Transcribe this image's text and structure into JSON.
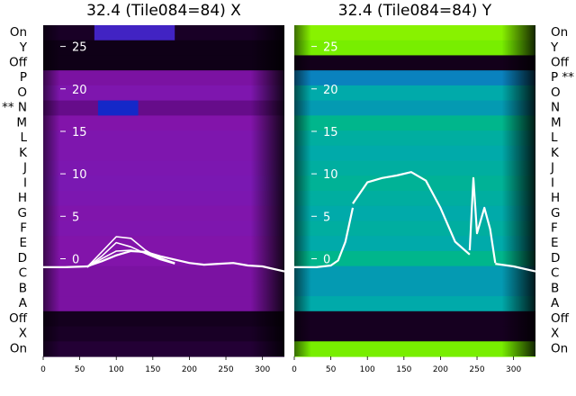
{
  "chart_data": [
    {
      "type": "heatmap",
      "title": "32.4 (Tile084=84) X",
      "x_ticks": [
        0,
        50,
        100,
        150,
        200,
        250,
        300
      ],
      "x_range": [
        0,
        330
      ],
      "y_ticks": [
        0,
        5,
        10,
        15,
        20,
        25
      ],
      "y_range": [
        -11.5,
        27.5
      ],
      "row_labels_left": [
        "On",
        "Y",
        "Off",
        "P",
        "O",
        "** N",
        "M",
        "L",
        "K",
        "J",
        "I",
        "H",
        "G",
        "F",
        "E",
        "D",
        "C",
        "B",
        "A",
        "Off",
        "X",
        "On"
      ],
      "row_values": [
        0.06,
        0.02,
        0.02,
        0.38,
        0.42,
        0.32,
        0.4,
        0.42,
        0.42,
        0.43,
        0.44,
        0.43,
        0.41,
        0.42,
        0.4,
        0.4,
        0.38,
        0.38,
        0.38,
        0.04,
        0.06,
        0.1
      ],
      "hot_rows": [
        {
          "row": 0,
          "x0": 70,
          "x1": 180,
          "value": 0.55
        },
        {
          "row": 5,
          "x0": 75,
          "x1": 130,
          "value": 0.6
        }
      ],
      "line_series": {
        "baseline": {
          "x": [
            0,
            30,
            60,
            80,
            100,
            120,
            140,
            160,
            180,
            200,
            220,
            240,
            260,
            280,
            300,
            330
          ],
          "y": [
            -1.0,
            -1.0,
            -0.9,
            -0.3,
            0.4,
            0.9,
            0.8,
            0.3,
            -0.1,
            -0.5,
            -0.7,
            -0.6,
            -0.5,
            -0.8,
            -0.9,
            -1.5
          ]
        },
        "peaks": [
          {
            "x": [
              60,
              80,
              100,
              120,
              140,
              160,
              180
            ],
            "y": [
              -1.0,
              0.8,
              2.6,
              2.4,
              1.0,
              0.0,
              -0.5
            ]
          },
          {
            "x": [
              60,
              80,
              100,
              120,
              140,
              160,
              180
            ],
            "y": [
              -1.0,
              0.3,
              1.9,
              1.4,
              0.6,
              -0.1,
              -0.6
            ]
          },
          {
            "x": [
              60,
              80,
              100,
              120,
              140,
              160,
              180
            ],
            "y": [
              -1.0,
              0.0,
              0.9,
              1.0,
              0.7,
              0.1,
              -0.5
            ]
          }
        ]
      }
    },
    {
      "type": "heatmap",
      "title": "32.4 (Tile084=84) Y",
      "x_ticks": [
        0,
        50,
        100,
        150,
        200,
        250,
        300
      ],
      "x_range": [
        0,
        330
      ],
      "y_ticks": [
        0,
        5,
        10,
        15,
        20,
        25
      ],
      "y_range": [
        -11.5,
        27.5
      ],
      "row_labels_right": [
        "On",
        "Y",
        "Off",
        "P **",
        "O",
        "N",
        "M",
        "L",
        "K",
        "J",
        "I",
        "H",
        "G",
        "F",
        "E",
        "D",
        "C",
        "B",
        "A",
        "Off",
        "X",
        "On"
      ],
      "row_values": [
        0.92,
        0.9,
        0.02,
        0.55,
        0.6,
        0.58,
        0.66,
        0.62,
        0.6,
        0.62,
        0.64,
        0.62,
        0.6,
        0.62,
        0.6,
        0.66,
        0.58,
        0.58,
        0.6,
        0.04,
        0.04,
        0.9
      ],
      "line_series": {
        "baseline": {
          "x": [
            0,
            30,
            50,
            60,
            70,
            80
          ],
          "y": [
            -1.0,
            -1.0,
            -0.8,
            -0.2,
            2.0,
            6.0
          ]
        },
        "plateau": {
          "x": [
            80,
            100,
            120,
            140,
            160,
            180,
            200,
            220,
            240
          ],
          "y": [
            6.5,
            9.0,
            9.5,
            9.8,
            10.2,
            9.2,
            6.0,
            2.0,
            0.5
          ]
        },
        "spike": {
          "x": [
            240,
            245,
            250,
            260,
            268,
            275
          ],
          "y": [
            1.0,
            9.5,
            3.0,
            6.0,
            3.5,
            -0.5
          ]
        },
        "tail": {
          "x": [
            275,
            300,
            330
          ],
          "y": [
            -0.6,
            -0.9,
            -1.5
          ]
        }
      }
    }
  ]
}
